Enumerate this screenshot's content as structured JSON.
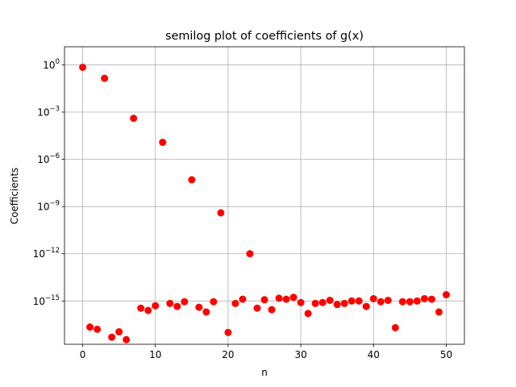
{
  "chart_data": {
    "type": "scatter",
    "title": "semilog plot of coefficients of g(x)",
    "xlabel": "n",
    "ylabel": "Coefficients",
    "yscale": "log",
    "xlim": [
      -2.5,
      52.5
    ],
    "ylim_log10": [
      -17.75,
      1.15
    ],
    "xticks": [
      0,
      10,
      20,
      30,
      40,
      50
    ],
    "yticks_exp": [
      0,
      -3,
      -6,
      -9,
      -12,
      -15
    ],
    "grid": true,
    "marker_color": "#ff0000",
    "series": [
      {
        "x": [
          0,
          1,
          2,
          3,
          4,
          5,
          6,
          7,
          8,
          9,
          10,
          11,
          12,
          13,
          14,
          15,
          16,
          17,
          18,
          19,
          20,
          21,
          22,
          23,
          24,
          25,
          26,
          27,
          28,
          29,
          30,
          31,
          32,
          33,
          34,
          35,
          36,
          37,
          38,
          39,
          40,
          41,
          42,
          43,
          44,
          45,
          46,
          47,
          48,
          49,
          50
        ],
        "y": [
          0.7,
          2.2e-17,
          1.6e-17,
          0.14,
          5e-18,
          1.1e-17,
          3.5e-18,
          0.0004,
          3.5e-16,
          2.5e-16,
          5e-16,
          1.2e-05,
          7e-16,
          4.5e-16,
          9e-16,
          5e-08,
          4e-16,
          2e-16,
          9e-16,
          4e-10,
          1e-17,
          7e-16,
          1.3e-15,
          1e-12,
          3.5e-16,
          1.2e-15,
          2.8e-16,
          1.5e-15,
          1.3e-15,
          1.7e-15,
          8e-16,
          1.6e-16,
          7e-16,
          8e-16,
          1.1e-15,
          6e-16,
          7e-16,
          1e-15,
          1e-15,
          4.5e-16,
          1.4e-15,
          9e-16,
          1.1e-15,
          2e-17,
          9e-16,
          9e-16,
          1e-15,
          1.4e-15,
          1.3e-15,
          2e-16,
          2.5e-15
        ]
      }
    ]
  }
}
